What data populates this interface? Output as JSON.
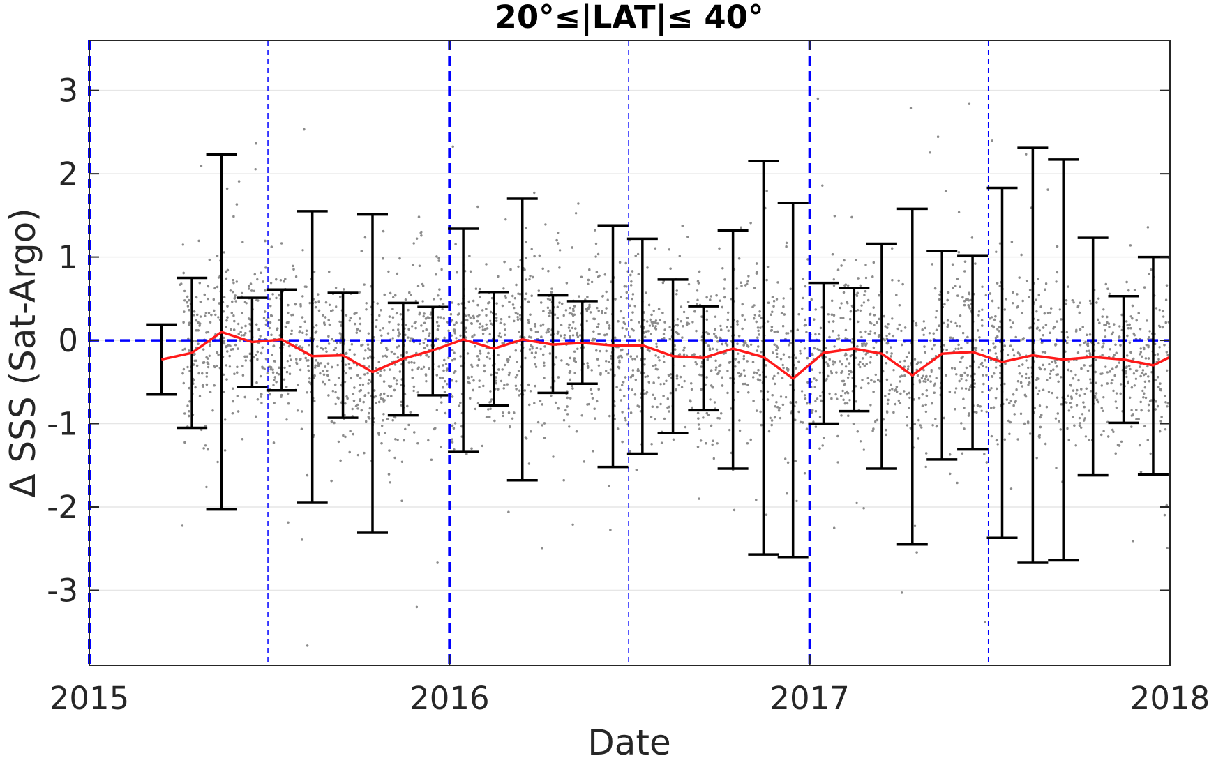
{
  "chart_data": {
    "type": "scatter",
    "title": "20°≤|LAT|≤ 40°",
    "xlabel": "Date",
    "ylabel": "Δ SSS (Sat-Argo)",
    "xlim": [
      2015.0,
      2018.0
    ],
    "ylim": [
      -3.9,
      3.6
    ],
    "x_ticks": [
      2015,
      2016,
      2017,
      2018
    ],
    "x_tick_labels": [
      "2015",
      "2016",
      "2017",
      "2018"
    ],
    "y_ticks": [
      3,
      2,
      1,
      0,
      -1,
      -2,
      -3
    ],
    "y_tick_labels": [
      "3",
      "2",
      "1",
      "0",
      "-1",
      "-2",
      "-3"
    ],
    "grid": "horizontal",
    "reference_line": {
      "y": 0,
      "style": "dashed",
      "color": "#0000ff"
    },
    "vertical_markers": {
      "major": [
        "2015-01-01",
        "2016-01-01",
        "2017-01-01",
        "2018-01-01"
      ],
      "minor": [
        "2015-07-01",
        "2016-07-01",
        "2017-07-01"
      ],
      "color": "#0000ff",
      "style": "dashed"
    },
    "colors": {
      "points": "#8c8c8c",
      "mean_line": "#ff1a1a",
      "error_bars": "#000000",
      "markers": "#0000ff",
      "grid": "#e6e6e6"
    },
    "series": [
      {
        "type": "line",
        "x": [
          "2015-03-15",
          "2015-04-15",
          "2015-05-15",
          "2015-06-15",
          "2015-07-15",
          "2015-08-15",
          "2015-09-15",
          "2015-10-15",
          "2015-11-15",
          "2015-12-15",
          "2016-01-15",
          "2016-02-15",
          "2016-03-15",
          "2016-04-15",
          "2016-05-15",
          "2016-06-15",
          "2016-07-15",
          "2016-08-15",
          "2016-09-15",
          "2016-10-15",
          "2016-11-15",
          "2016-12-15",
          "2017-01-15",
          "2017-02-15",
          "2017-03-15",
          "2017-04-15",
          "2017-05-15",
          "2017-06-15",
          "2017-07-15",
          "2017-08-15",
          "2017-09-15",
          "2017-10-15",
          "2017-11-15",
          "2017-12-15",
          "2018-01-01"
        ],
        "y": [
          -0.23,
          -0.15,
          0.1,
          -0.02,
          0.01,
          -0.19,
          -0.18,
          -0.38,
          -0.22,
          -0.12,
          0.01,
          -0.1,
          0.01,
          -0.05,
          -0.03,
          -0.06,
          -0.06,
          -0.19,
          -0.21,
          -0.1,
          -0.2,
          -0.46,
          -0.15,
          -0.1,
          -0.16,
          -0.42,
          -0.16,
          -0.14,
          -0.26,
          -0.18,
          -0.23,
          -0.2,
          -0.23,
          -0.3,
          -0.2
        ]
      },
      {
        "type": "errorbar",
        "x": [
          "2015-03-15",
          "2015-04-15",
          "2015-05-15",
          "2015-06-15",
          "2015-07-15",
          "2015-08-15",
          "2015-09-15",
          "2015-10-15",
          "2015-11-15",
          "2015-12-15",
          "2016-01-15",
          "2016-02-15",
          "2016-03-15",
          "2016-04-15",
          "2016-05-15",
          "2016-06-15",
          "2016-07-15",
          "2016-08-15",
          "2016-09-15",
          "2016-10-15",
          "2016-11-15",
          "2016-12-15",
          "2017-01-15",
          "2017-02-15",
          "2017-03-15",
          "2017-04-15",
          "2017-05-15",
          "2017-06-15",
          "2017-07-15",
          "2017-08-15",
          "2017-09-15",
          "2017-10-15",
          "2017-11-15",
          "2017-12-15"
        ],
        "upper": [
          0.19,
          0.75,
          2.23,
          0.51,
          0.61,
          1.55,
          0.57,
          1.51,
          0.45,
          0.4,
          1.34,
          0.58,
          1.7,
          0.54,
          0.47,
          1.38,
          1.22,
          0.73,
          0.41,
          1.32,
          2.15,
          1.65,
          0.69,
          0.63,
          1.16,
          1.58,
          1.07,
          1.02,
          1.83,
          2.31,
          2.17,
          1.23,
          0.53,
          1.0
        ],
        "lower": [
          -0.65,
          -1.05,
          -2.03,
          -0.56,
          -0.6,
          -1.95,
          -0.93,
          -2.31,
          -0.9,
          -0.66,
          -1.34,
          -0.78,
          -1.68,
          -0.63,
          -0.52,
          -1.52,
          -1.36,
          -1.11,
          -0.84,
          -1.54,
          -2.57,
          -2.6,
          -1.0,
          -0.85,
          -1.54,
          -2.45,
          -1.43,
          -1.31,
          -2.37,
          -2.67,
          -2.64,
          -1.62,
          -0.99,
          -1.61
        ]
      }
    ]
  }
}
